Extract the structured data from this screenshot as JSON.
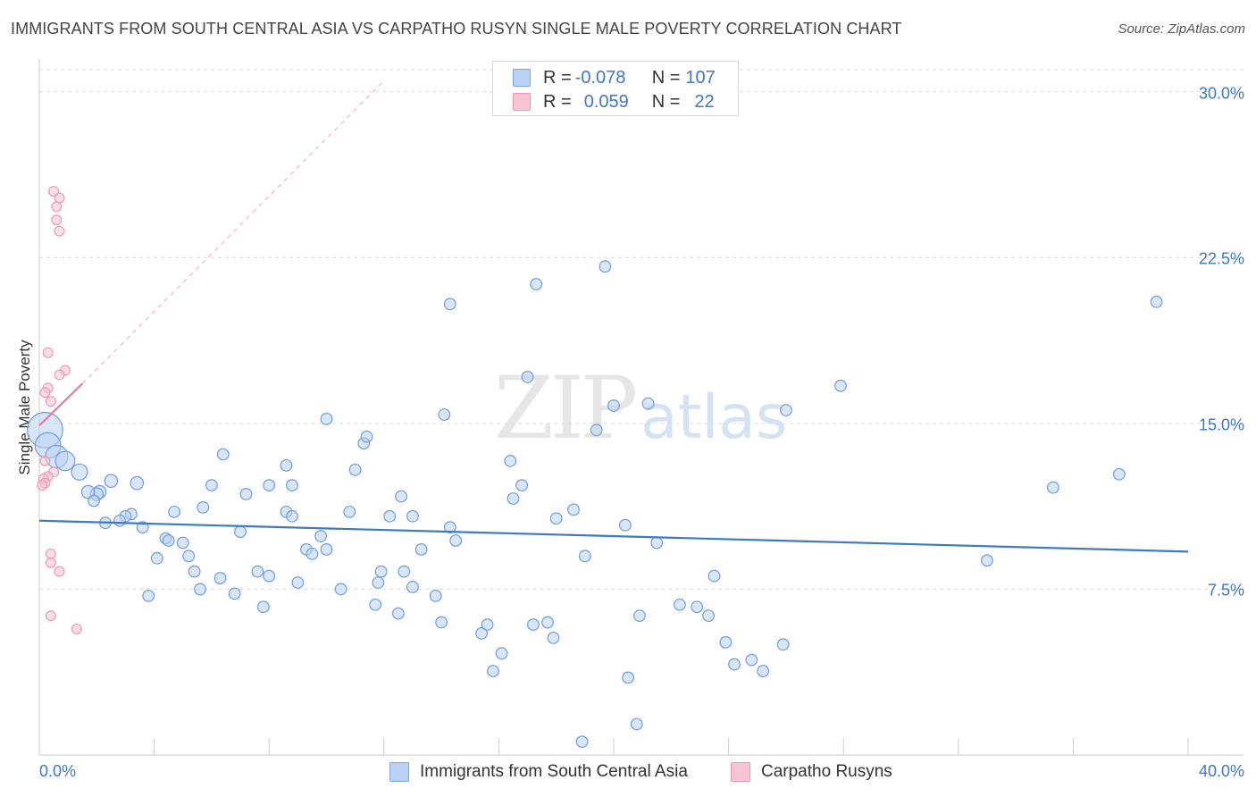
{
  "title": "IMMIGRANTS FROM SOUTH CENTRAL ASIA VS CARPATHO RUSYN SINGLE MALE POVERTY CORRELATION CHART",
  "source": "Source: ZipAtlas.com",
  "watermark": {
    "zip": "ZIP",
    "atlas": "atlas"
  },
  "legend": {
    "blue": {
      "r_label": "R = ",
      "r_value": "-0.078",
      "n_label": "N = ",
      "n_value": "107"
    },
    "pink": {
      "r_label": "R = ",
      "r_value": "0.059",
      "n_label": "N = ",
      "n_value": "22"
    }
  },
  "colors": {
    "blue": "#3e78c6",
    "blue_fill": "#b9d1f2",
    "pink": "#e8799f",
    "pink_fill": "#f8c3d3"
  },
  "chart_data": {
    "type": "scatter",
    "xlabel": "",
    "ylabel": "Single Male Poverty",
    "xlim": [
      0,
      40
    ],
    "ylim": [
      0,
      31
    ],
    "x_tick_labels": [
      "0.0%",
      "40.0%"
    ],
    "y_ticks": [
      {
        "value": 7.5,
        "label": "7.5%"
      },
      {
        "value": 15,
        "label": "15.0%"
      },
      {
        "value": 22.5,
        "label": "22.5%"
      },
      {
        "value": 30,
        "label": "30.0%"
      }
    ],
    "series": [
      {
        "name": "Immigrants from South Central Asia",
        "color": "#3e78c6",
        "trend": {
          "x": [
            0,
            40
          ],
          "y": [
            10.6,
            9.2
          ]
        },
        "points": [
          [
            0.2,
            14.7,
            2.2
          ],
          [
            0.3,
            14.0,
            1.6
          ],
          [
            0.6,
            13.5,
            1.4
          ],
          [
            0.9,
            13.3,
            1.2
          ],
          [
            1.4,
            12.8,
            1.0
          ],
          [
            2.5,
            12.4,
            0.8
          ],
          [
            3.4,
            12.3,
            0.8
          ],
          [
            2.1,
            11.9,
            0.8
          ],
          [
            2.0,
            11.8,
            0.8
          ],
          [
            1.7,
            11.9,
            0.8
          ],
          [
            1.9,
            11.5,
            0.7
          ],
          [
            3.2,
            10.9,
            0.7
          ],
          [
            3.0,
            10.8,
            0.7
          ],
          [
            2.8,
            10.6,
            0.7
          ],
          [
            2.3,
            10.5,
            0.7
          ],
          [
            3.6,
            10.3,
            0.7
          ],
          [
            4.7,
            11.0,
            0.7
          ],
          [
            5.7,
            11.2,
            0.7
          ],
          [
            4.4,
            9.8,
            0.7
          ],
          [
            4.5,
            9.7,
            0.7
          ],
          [
            5.0,
            9.6,
            0.7
          ],
          [
            5.2,
            9.0,
            0.7
          ],
          [
            4.1,
            8.9,
            0.7
          ],
          [
            5.4,
            8.3,
            0.7
          ],
          [
            3.8,
            7.2,
            0.7
          ],
          [
            5.6,
            7.5,
            0.7
          ],
          [
            6.3,
            8.0,
            0.7
          ],
          [
            6.8,
            7.3,
            0.7
          ],
          [
            7.0,
            10.1,
            0.7
          ],
          [
            6.4,
            13.6,
            0.7
          ],
          [
            6.0,
            12.2,
            0.7
          ],
          [
            7.2,
            11.8,
            0.7
          ],
          [
            7.6,
            8.3,
            0.7
          ],
          [
            8.0,
            8.1,
            0.7
          ],
          [
            7.8,
            6.7,
            0.7
          ],
          [
            8.6,
            11.0,
            0.7
          ],
          [
            8.8,
            10.8,
            0.7
          ],
          [
            8.0,
            12.2,
            0.7
          ],
          [
            8.8,
            12.2,
            0.7
          ],
          [
            8.6,
            13.1,
            0.7
          ],
          [
            9.3,
            9.3,
            0.7
          ],
          [
            9.5,
            9.1,
            0.7
          ],
          [
            9.8,
            9.9,
            0.7
          ],
          [
            10.0,
            9.3,
            0.7
          ],
          [
            9.0,
            7.8,
            0.7
          ],
          [
            10.5,
            7.5,
            0.7
          ],
          [
            10.0,
            15.2,
            0.7
          ],
          [
            10.8,
            11.0,
            0.7
          ],
          [
            11.0,
            12.9,
            0.7
          ],
          [
            11.3,
            14.1,
            0.7
          ],
          [
            11.4,
            14.4,
            0.7
          ],
          [
            11.7,
            6.8,
            0.7
          ],
          [
            11.8,
            7.8,
            0.7
          ],
          [
            11.9,
            8.3,
            0.7
          ],
          [
            12.2,
            10.8,
            0.7
          ],
          [
            12.5,
            6.4,
            0.7
          ],
          [
            12.7,
            8.3,
            0.7
          ],
          [
            12.6,
            11.7,
            0.7
          ],
          [
            13.0,
            7.6,
            0.7
          ],
          [
            13.0,
            10.8,
            0.7
          ],
          [
            13.3,
            9.3,
            0.7
          ],
          [
            13.8,
            7.2,
            0.7
          ],
          [
            14.0,
            6.0,
            0.7
          ],
          [
            14.3,
            10.3,
            0.7
          ],
          [
            14.5,
            9.7,
            0.7
          ],
          [
            14.1,
            15.4,
            0.7
          ],
          [
            14.3,
            20.4,
            0.7
          ],
          [
            15.4,
            5.5,
            0.7
          ],
          [
            15.6,
            5.9,
            0.7
          ],
          [
            15.8,
            3.8,
            0.7
          ],
          [
            16.1,
            4.6,
            0.7
          ],
          [
            16.4,
            13.3,
            0.7
          ],
          [
            16.5,
            11.6,
            0.7
          ],
          [
            17.0,
            17.1,
            0.7
          ],
          [
            17.3,
            21.3,
            0.7
          ],
          [
            17.7,
            6.0,
            0.7
          ],
          [
            17.9,
            5.3,
            0.7
          ],
          [
            17.2,
            5.9,
            0.7
          ],
          [
            18.0,
            10.7,
            0.7
          ],
          [
            18.6,
            11.1,
            0.7
          ],
          [
            19.0,
            9.0,
            0.7
          ],
          [
            19.4,
            14.7,
            0.7
          ],
          [
            19.7,
            22.1,
            0.7
          ],
          [
            20.0,
            15.8,
            0.7
          ],
          [
            20.4,
            10.4,
            0.7
          ],
          [
            20.5,
            3.5,
            0.7
          ],
          [
            20.8,
            1.4,
            0.7
          ],
          [
            20.9,
            6.3,
            0.7
          ],
          [
            21.2,
            15.9,
            0.7
          ],
          [
            21.5,
            9.6,
            0.7
          ],
          [
            22.3,
            6.8,
            0.7
          ],
          [
            22.9,
            6.7,
            0.7
          ],
          [
            23.3,
            6.3,
            0.7
          ],
          [
            23.5,
            8.1,
            0.7
          ],
          [
            23.9,
            5.1,
            0.7
          ],
          [
            24.2,
            4.1,
            0.7
          ],
          [
            24.8,
            4.3,
            0.7
          ],
          [
            25.2,
            3.8,
            0.7
          ],
          [
            25.9,
            5.0,
            0.7
          ],
          [
            26.0,
            15.6,
            0.7
          ],
          [
            27.9,
            16.7,
            0.7
          ],
          [
            33.0,
            8.8,
            0.7
          ],
          [
            35.3,
            12.1,
            0.7
          ],
          [
            37.6,
            12.7,
            0.7
          ],
          [
            38.9,
            20.5,
            0.7
          ],
          [
            18.9,
            0.6,
            0.7
          ],
          [
            16.8,
            12.2,
            0.7
          ]
        ]
      },
      {
        "name": "Carpatho Rusyns",
        "color": "#e8799f",
        "trend": {
          "x": [
            0,
            1.5
          ],
          "y": [
            14.9,
            16.8
          ]
        },
        "trend_extended": {
          "x": [
            1.5,
            12.0
          ],
          "y": [
            16.8,
            30.5
          ]
        },
        "points": [
          [
            0.5,
            25.5,
            0.6
          ],
          [
            0.7,
            25.2,
            0.6
          ],
          [
            0.6,
            24.8,
            0.6
          ],
          [
            0.6,
            24.2,
            0.6
          ],
          [
            0.7,
            23.7,
            0.6
          ],
          [
            0.3,
            18.2,
            0.6
          ],
          [
            0.9,
            17.4,
            0.6
          ],
          [
            0.7,
            17.2,
            0.6
          ],
          [
            0.3,
            16.6,
            0.6
          ],
          [
            0.2,
            16.4,
            0.6
          ],
          [
            0.4,
            16.0,
            0.6
          ],
          [
            0.2,
            13.3,
            0.6
          ],
          [
            0.5,
            12.8,
            0.6
          ],
          [
            0.3,
            12.6,
            0.6
          ],
          [
            0.15,
            12.5,
            0.6
          ],
          [
            0.2,
            12.3,
            0.6
          ],
          [
            0.4,
            9.1,
            0.6
          ],
          [
            0.4,
            8.7,
            0.6
          ],
          [
            0.7,
            8.3,
            0.6
          ],
          [
            0.4,
            6.3,
            0.6
          ],
          [
            1.3,
            5.7,
            0.6
          ],
          [
            0.1,
            12.2,
            0.6
          ]
        ]
      }
    ]
  }
}
